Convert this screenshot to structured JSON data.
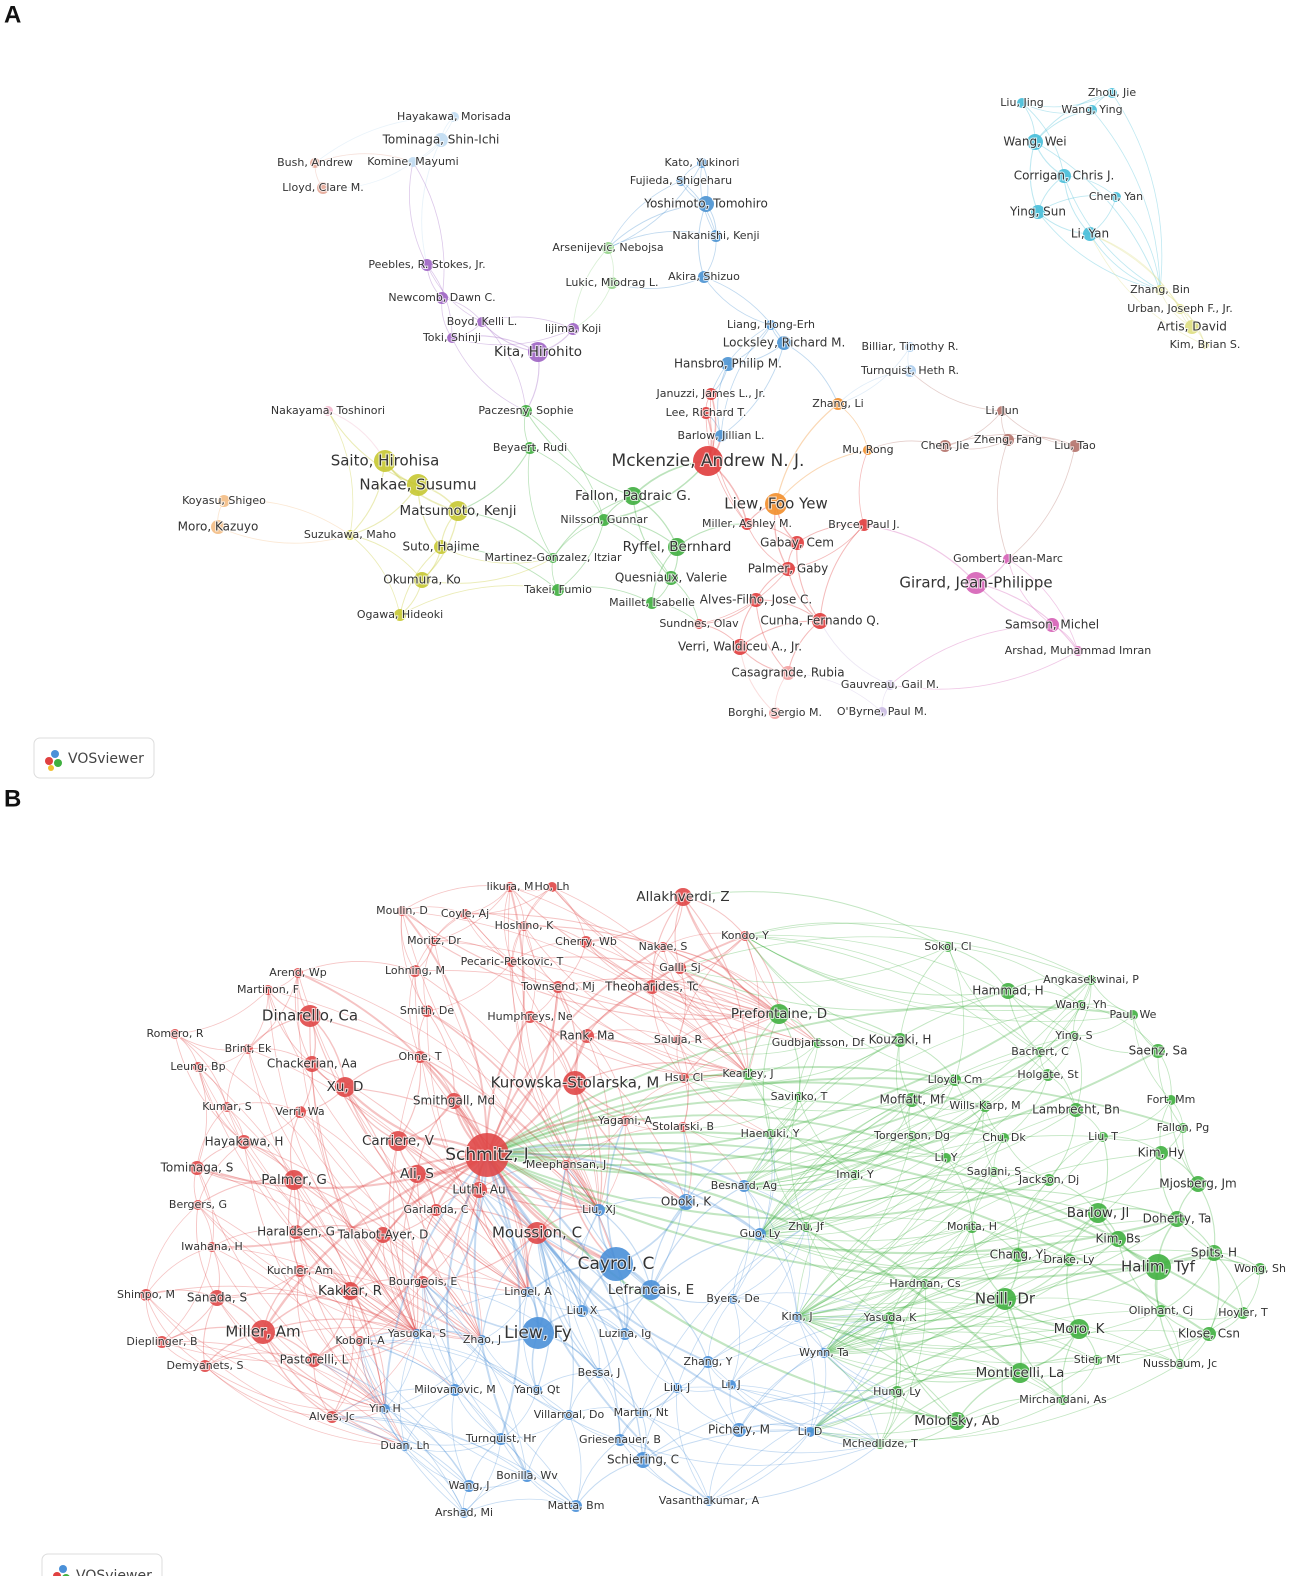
{
  "panels": [
    {
      "label": "A",
      "badge": "VOSviewer",
      "clusters": [
        {
          "color": "#45bcd8",
          "nodes": [
            "Liu, Jing",
            "Zhou, Jie",
            "Wang, Ying",
            "Wang, Wei",
            "Corrigan, Chris J.",
            "Chen, Yan",
            "Ying, Sun",
            "Li, Yan"
          ]
        },
        {
          "color": "#dede80",
          "nodes": [
            "Zhang, Bin",
            "Urban, Joseph F., Jr.",
            "Artis, David",
            "Kim, Brian S."
          ]
        },
        {
          "color": "#c0dcf2",
          "nodes": [
            "Hayakawa, Morisada",
            "Tominaga, Shin-Ichi",
            "Komine, Mayumi"
          ]
        },
        {
          "color": "#e6a898",
          "nodes": [
            "Bush, Andrew",
            "Lloyd, Clare M."
          ]
        },
        {
          "color": "#4a92d2",
          "nodes": [
            "Kato, Yukinori",
            "Fujieda, Shigeharu",
            "Yoshimoto, Tomohiro",
            "Nakanishi, Kenji",
            "Akira, Shizuo",
            "Liang, Hong-Erh",
            "Locksley, Richard M.",
            "Hansbro, Philip M.",
            "Barlow, Jillian L."
          ]
        },
        {
          "color": "#94d38a",
          "nodes": [
            "Arsenijevic, Nebojsa",
            "Lukic, Miodrag L."
          ]
        },
        {
          "color": "#9d63c3",
          "nodes": [
            "Peebles, R. Stokes, Jr.",
            "Newcomb, Dawn C.",
            "Boyd, Kelli L.",
            "Toki, Shinji",
            "Iijima, Koji",
            "Kita, Hirohito"
          ]
        },
        {
          "color": "#a9cbec",
          "nodes": [
            "Billiar, Timothy R.",
            "Turnquist, Heth R."
          ]
        },
        {
          "color": "#f2b6cc",
          "nodes": [
            "Nakayama, Toshinori"
          ]
        },
        {
          "color": "#3fae3f",
          "nodes": [
            "Paczesny, Sophie",
            "Beyaert, Rudi",
            "Fallon, Padraic G.",
            "Nilsson, Gunnar",
            "Ryffel, Bernhard",
            "Martinez-Gonzalez, Itziar",
            "Quesniaux, Valerie",
            "Takei, Fumio",
            "Maillet, Isabelle"
          ]
        },
        {
          "color": "#e03c3c",
          "nodes": [
            "Januzzi, James L., Jr.",
            "Lee, Richard T.",
            "Mckenzie, Andrew N. J.",
            "Miller, Ashley M.",
            "Bryce, Paul J.",
            "Gabay, Cem",
            "Palmer, Gaby",
            "Alves-Filho, Jose C.",
            "Sundnes, Olav",
            "Cunha, Fernando Q.",
            "Verri, Waldiceu A., Jr."
          ]
        },
        {
          "color": "#f28e2b",
          "nodes": [
            "Zhang, Li",
            "Liew, Foo Yew",
            "Mu, Rong"
          ]
        },
        {
          "color": "#b4726a",
          "nodes": [
            "Li, Jun",
            "Chen, Jie",
            "Zheng, Fang",
            "Liu, Tao"
          ]
        },
        {
          "color": "#c6c832",
          "nodes": [
            "Saito, Hirohisa",
            "Nakae, Susumu",
            "Matsumoto, Kenji",
            "Suzukawa, Maho",
            "Suto, Hajime",
            "Okumura, Ko",
            "Ogawa, Hideoki"
          ]
        },
        {
          "color": "#f3bd84",
          "nodes": [
            "Koyasu, Shigeo",
            "Moro, Kazuyo"
          ]
        },
        {
          "color": "#d560b6",
          "nodes": [
            "Gombert, Jean-Marc",
            "Girard, Jean-Philippe",
            "Samson, Michel",
            "Arshad, Muhammad Imran"
          ]
        },
        {
          "color": "#f2a0a0",
          "nodes": [
            "Casagrande, Rubia",
            "Borghi, Sergio M."
          ]
        },
        {
          "color": "#cbbde3",
          "nodes": [
            "Gauvreau, Gail M.",
            "O'Byrne, Paul M."
          ]
        }
      ]
    },
    {
      "label": "B",
      "badge": "VOSviewer",
      "clusters": [
        {
          "color": "#e04848",
          "nodes": [
            "Iikura, M",
            "Ho, Lh",
            "Allakhverdi, Z",
            "Moulin, D",
            "Coyle, Aj",
            "Hoshino, K",
            "Kondo, Y",
            "Moritz, Dr",
            "Cherry, Wb",
            "Nakae, S",
            "Pecaric-Petkovic, T",
            "Galli, Sj",
            "Arend, Wp",
            "Lohning, M",
            "Martinon, F",
            "Townsend, Mj",
            "Theoharides, Tc",
            "Smith, De",
            "Humphreys, Ne",
            "Dinarello, Ca",
            "Romero, R",
            "Rank, Ma",
            "Saluja, R",
            "Brint, Ek",
            "Ohne, T",
            "Chackerian, Aa",
            "Leung, Bp",
            "Xu, D",
            "Hsu, Cl",
            "Kurowska-Stolarska, M",
            "Smithgall, Md",
            "Kumar, S",
            "Verri, Wa",
            "Yagami, A",
            "Stolarski, B",
            "Hayakawa, H",
            "Carriere, V",
            "Schmitz, J",
            "Meephansan, J",
            "Tominaga, S",
            "Ali, S",
            "Palmer, G",
            "Luthi, Au",
            "Bergers, G",
            "Garlanda, C",
            "Haraldsen, G",
            "Talabot-Ayer, D",
            "Moussion, C",
            "Iwahana, H",
            "Kuchler, Am",
            "Bourgeois, E",
            "Kakkar, R",
            "Shimpo, M",
            "Sanada, S",
            "Miller, Am",
            "Kobori, A",
            "Dieplinger, B",
            "Pastorelli, L",
            "Demyanets, S",
            "Alves, Jc"
          ]
        },
        {
          "color": "#4a90d8",
          "nodes": [
            "Besnard, Ag",
            "Oboki, K",
            "Liu, Xj",
            "Guo, Ly",
            "Cayrol, C",
            "Lefrancais, E",
            "Lingel, A",
            "Byers, De",
            "Liu, X",
            "Yasuoka, S",
            "Liew, Fy",
            "Zhao, J",
            "Luzina, Ig",
            "Kim, J",
            "Wynn, Ta",
            "Zhang, Y",
            "Bessa, J",
            "Li, J",
            "Milovanovic, M",
            "Yang, Qt",
            "Liu, J",
            "Yin, H",
            "Martin, Nt",
            "Villarroal, Do",
            "Turnquist, Hr",
            "Griesenauer, B",
            "Pichery, M",
            "Li, D",
            "Duan, Lh",
            "Schiering, C",
            "Bonilla, Wv",
            "Wang, J",
            "Matta, Bm",
            "Vasanthakumar, A",
            "Arshad, Mi"
          ]
        },
        {
          "color": "#40b040",
          "nodes": [
            "Sokol, Cl",
            "Angkasekwinai, P",
            "Hammad, H",
            "Wang, Yh",
            "Paul, We",
            "Prefontaine, D",
            "Gudbjartsson, Df",
            "Ying, S",
            "Kouzaki, H",
            "Bachert, C",
            "Saenz, Sa",
            "Kearley, J",
            "Holgate, St",
            "Lloyd, Cm",
            "Savinko, T",
            "Moffatt, Mf",
            "Wills-Karp, M",
            "Fort, Mm",
            "Lambrecht, Bn",
            "Fallon, Pg",
            "Haenuki, Y",
            "Torgerson, Dg",
            "Chu, Dk",
            "Liu, T",
            "Kim, Hy",
            "Li, Y",
            "Saglani, S",
            "Imai, Y",
            "Jackson, Dj",
            "Mjosberg, Jm",
            "Barlow, Jl",
            "Doherty, Ta",
            "Zhu, Jf",
            "Morita, H",
            "Kim, Bs",
            "Chang, Yj",
            "Drake, Ly",
            "Spits, H",
            "Halim, Tyf",
            "Wong, Sh",
            "Hardman, Cs",
            "Neill, Dr",
            "Oliphant, Cj",
            "Hoyler, T",
            "Yasuda, K",
            "Moro, K",
            "Klose, Csn",
            "Stier, Mt",
            "Nussbaum, Jc",
            "Monticelli, La",
            "Hung, Ly",
            "Mirchandani, As",
            "Molofsky, Ab",
            "Mchedlidze, T"
          ]
        }
      ]
    }
  ]
}
